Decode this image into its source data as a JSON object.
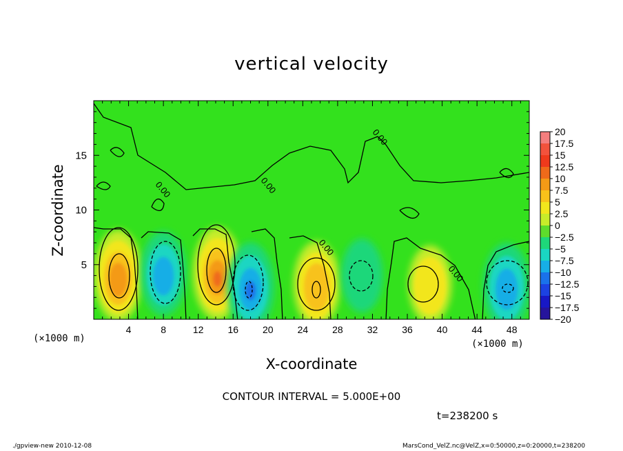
{
  "chart_data": {
    "type": "heatmap",
    "title": "vertical velocity",
    "xlabel": "X-coordinate",
    "ylabel": "Z-coordinate",
    "x_unit": "(×1000 m)",
    "z_unit": "(×1000 m)",
    "xlim": [
      0,
      50
    ],
    "ylim": [
      0,
      20
    ],
    "x_ticks": [
      "4",
      "8",
      "12",
      "16",
      "20",
      "24",
      "28",
      "32",
      "36",
      "40",
      "44",
      "48"
    ],
    "y_ticks": [
      "5",
      "10",
      "15"
    ],
    "zero_contour_label": "0.00",
    "colorbar": {
      "levels": [
        "20",
        "17.5",
        "15",
        "12.5",
        "10",
        "7.5",
        "5",
        "2.5",
        "0",
        "-2.5",
        "-5",
        "-7.5",
        "-10",
        "-12.5",
        "-15",
        "-17.5",
        "-20"
      ],
      "colors": [
        "#f47e7e",
        "#f2523c",
        "#ee3a1c",
        "#ef6a1a",
        "#f49a16",
        "#f8c21a",
        "#f2e61c",
        "#c8ec2a",
        "#5edc2c",
        "#1ed77a",
        "#1ad6c2",
        "#17aee6",
        "#1a72ea",
        "#1c42e2",
        "#1818c6",
        "#26149c",
        "#5a1680"
      ]
    },
    "cells": [
      {
        "x": 2.8,
        "z": 4.0,
        "w": 12.0
      },
      {
        "x": 8.0,
        "z": 4.2,
        "w": -8.0
      },
      {
        "x": 14.2,
        "z": 4.2,
        "w": 12.5
      },
      {
        "x": 18.0,
        "z": 3.0,
        "w": -10.0
      },
      {
        "x": 25.6,
        "z": 3.2,
        "w": 9.0
      },
      {
        "x": 30.8,
        "z": 4.0,
        "w": -3.5
      },
      {
        "x": 38.6,
        "z": 3.2,
        "w": 5.0
      },
      {
        "x": 47.4,
        "z": 3.0,
        "w": -9.5
      }
    ],
    "contour_interval": "CONTOUR INTERVAL = 5.000E+00",
    "time_label": "t=238200 s"
  },
  "footer": {
    "left": "./gpview-new   2010-12-08",
    "right": "MarsCond_VelZ.nc@VelZ,x=0:50000,z=0:20000,t=238200"
  }
}
